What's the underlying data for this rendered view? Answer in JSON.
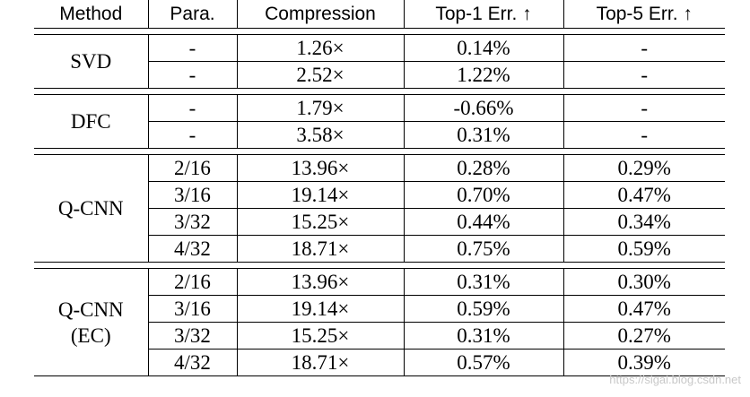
{
  "table": {
    "headers": {
      "method": "Method",
      "para": "Para.",
      "compression": "Compression",
      "top1": "Top-1 Err. ↑",
      "top5": "Top-5 Err. ↑"
    },
    "groups": [
      {
        "method": "SVD",
        "rows": [
          {
            "para": "-",
            "compression": "1.26×",
            "top1": "0.14%",
            "top5": "-"
          },
          {
            "para": "-",
            "compression": "2.52×",
            "top1": "1.22%",
            "top5": "-"
          }
        ]
      },
      {
        "method": "DFC",
        "rows": [
          {
            "para": "-",
            "compression": "1.79×",
            "top1": "-0.66%",
            "top5": "-"
          },
          {
            "para": "-",
            "compression": "3.58×",
            "top1": "0.31%",
            "top5": "-"
          }
        ]
      },
      {
        "method": "Q-CNN",
        "rows": [
          {
            "para": "2/16",
            "compression": "13.96×",
            "top1": "0.28%",
            "top5": "0.29%"
          },
          {
            "para": "3/16",
            "compression": "19.14×",
            "top1": "0.70%",
            "top5": "0.47%"
          },
          {
            "para": "3/32",
            "compression": "15.25×",
            "top1": "0.44%",
            "top5": "0.34%"
          },
          {
            "para": "4/32",
            "compression": "18.71×",
            "top1": "0.75%",
            "top5": "0.59%"
          }
        ]
      },
      {
        "method": "Q-CNN",
        "method_line2": "(EC)",
        "rows": [
          {
            "para": "2/16",
            "compression": "13.96×",
            "top1": "0.31%",
            "top5": "0.30%"
          },
          {
            "para": "3/16",
            "compression": "19.14×",
            "top1": "0.59%",
            "top5": "0.47%"
          },
          {
            "para": "3/32",
            "compression": "15.25×",
            "top1": "0.31%",
            "top5": "0.27%"
          },
          {
            "para": "4/32",
            "compression": "18.71×",
            "top1": "0.57%",
            "top5": "0.39%"
          }
        ]
      }
    ]
  },
  "watermark": "https://sigai.blog.csdn.net"
}
